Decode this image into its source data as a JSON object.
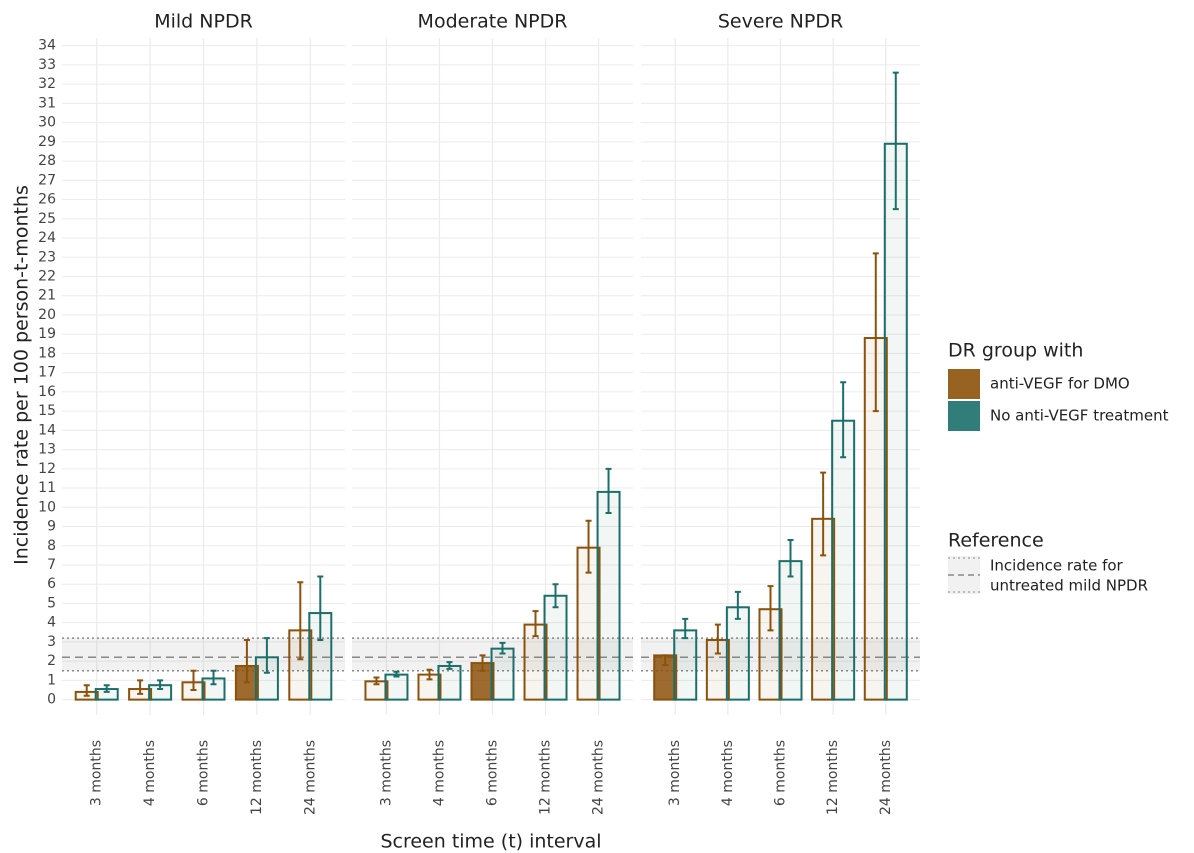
{
  "chart_data": {
    "type": "bar",
    "ylabel": "Incidence rate per 100 person-t-months",
    "xlabel": "Screen time (t) interval",
    "categories": [
      "3 months",
      "4 months",
      "6 months",
      "12 months",
      "24 months"
    ],
    "ylim": [
      -0.8,
      34.4
    ],
    "yticks": [
      0,
      1,
      2,
      3,
      4,
      5,
      6,
      7,
      8,
      9,
      10,
      11,
      12,
      13,
      14,
      15,
      16,
      17,
      18,
      19,
      20,
      21,
      22,
      23,
      24,
      25,
      26,
      27,
      28,
      29,
      30,
      31,
      32,
      33,
      34
    ],
    "grid": true,
    "legend_title": "DR group with",
    "series": [
      {
        "name": "anti-VEGF for DMO",
        "color": "#8c510a"
      },
      {
        "name": "No anti-VEGF treatment",
        "color": "#1b6f6a"
      }
    ],
    "panels": [
      {
        "title": "Mild NPDR",
        "highlight": 3,
        "values": [
          [
            0.4,
            0.55,
            0.9,
            1.75,
            3.6
          ],
          [
            0.55,
            0.75,
            1.1,
            2.2,
            4.5
          ]
        ],
        "lower": [
          [
            0.2,
            0.3,
            0.5,
            0.9,
            2.1
          ],
          [
            0.4,
            0.55,
            0.8,
            1.4,
            3.1
          ]
        ],
        "upper": [
          [
            0.75,
            1.0,
            1.5,
            3.1,
            6.1
          ],
          [
            0.75,
            1.0,
            1.5,
            3.2,
            6.4
          ]
        ]
      },
      {
        "title": "Moderate NPDR",
        "highlight": 2,
        "values": [
          [
            0.95,
            1.3,
            1.9,
            3.9,
            7.9
          ],
          [
            1.3,
            1.75,
            2.65,
            5.4,
            10.8
          ]
        ],
        "lower": [
          [
            0.8,
            1.05,
            1.5,
            3.3,
            6.6
          ],
          [
            1.2,
            1.6,
            2.4,
            4.8,
            9.7
          ]
        ],
        "upper": [
          [
            1.15,
            1.55,
            2.3,
            4.6,
            9.3
          ],
          [
            1.45,
            1.95,
            2.95,
            6.0,
            12.0
          ]
        ]
      },
      {
        "title": "Severe NPDR",
        "highlight": 0,
        "values": [
          [
            2.3,
            3.1,
            4.7,
            9.4,
            18.8
          ],
          [
            3.6,
            4.8,
            7.2,
            14.5,
            28.9
          ]
        ],
        "lower": [
          [
            1.8,
            2.4,
            3.6,
            7.5,
            15.0
          ],
          [
            3.2,
            4.2,
            6.4,
            12.6,
            25.5
          ]
        ],
        "upper": [
          [
            2.3,
            3.9,
            5.9,
            11.8,
            23.2
          ],
          [
            4.2,
            5.6,
            8.3,
            16.5,
            32.6
          ]
        ]
      }
    ],
    "reference": {
      "title": "Reference",
      "label": [
        "Incidence rate for",
        "untreated mild NPDR"
      ],
      "value": 2.2,
      "lower": 1.5,
      "upper": 3.2,
      "color": "#888888"
    }
  }
}
